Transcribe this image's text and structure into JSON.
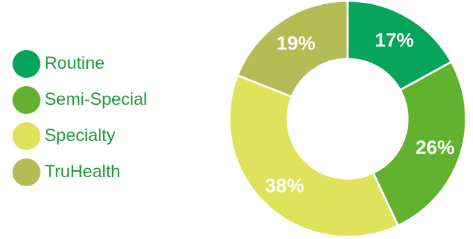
{
  "chart_data": {
    "type": "pie",
    "donut": true,
    "categories": [
      "Routine",
      "Semi-Special",
      "Specialty",
      "TruHealth"
    ],
    "values": [
      17,
      26,
      38,
      19
    ],
    "value_labels": [
      "17%",
      "26%",
      "38%",
      "19%"
    ],
    "colors": [
      "#06a55a",
      "#62b22f",
      "#dfe35b",
      "#b5bc55"
    ],
    "legend_position": "left",
    "start": "top",
    "direction": "clockwise"
  },
  "colors": {
    "legend_text": "#1f9a3e",
    "label_text": "#ffffff",
    "separator": "#ffffff"
  }
}
